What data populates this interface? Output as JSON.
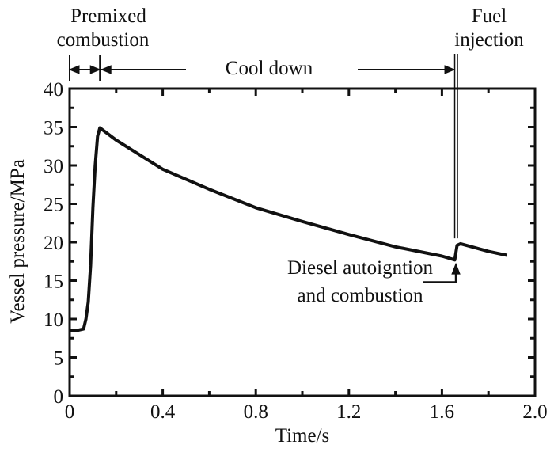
{
  "chart_data": {
    "type": "line",
    "xlabel": "Time/s",
    "ylabel": "Vessel pressure/MPa",
    "xlim": [
      0,
      2.0
    ],
    "ylim": [
      0,
      40
    ],
    "xticks": [
      "0",
      "0.4",
      "0.8",
      "1.2",
      "1.6",
      "2.0"
    ],
    "xtick_values": [
      0,
      0.4,
      0.8,
      1.2,
      1.6,
      2.0
    ],
    "yticks": [
      "0",
      "5",
      "10",
      "15",
      "20",
      "25",
      "30",
      "35",
      "40"
    ],
    "ytick_values": [
      0,
      5,
      10,
      15,
      20,
      25,
      30,
      35,
      40
    ],
    "grid": false,
    "series": [
      {
        "color": "#111111",
        "x": [
          0,
          0.03,
          0.06,
          0.07,
          0.08,
          0.09,
          0.1,
          0.11,
          0.12,
          0.13,
          0.2,
          0.3,
          0.4,
          0.6,
          0.8,
          1.0,
          1.2,
          1.4,
          1.6,
          1.655,
          1.665,
          1.68,
          1.8,
          1.88
        ],
        "y": [
          8.5,
          8.5,
          8.7,
          10,
          12.2,
          17,
          24.5,
          30,
          33.8,
          34.9,
          33.3,
          31.4,
          29.5,
          26.9,
          24.5,
          22.7,
          21.0,
          19.4,
          18.2,
          17.7,
          19.6,
          19.8,
          18.8,
          18.3
        ]
      }
    ],
    "annotations": {
      "premixed": [
        "Premixed",
        "combustion"
      ],
      "cool_down": "Cool down",
      "fuel_injection": [
        "Fuel",
        "injection"
      ],
      "diesel": [
        "Diesel autoigntion",
        "and combustion"
      ]
    },
    "markers": {
      "premixed_start": 0,
      "premixed_end": 0.13,
      "fuel_injection_time": 1.66
    }
  }
}
